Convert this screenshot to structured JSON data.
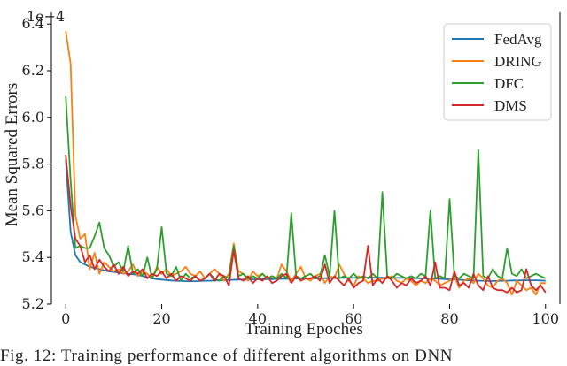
{
  "chart_data": {
    "type": "line",
    "xlabel": "Training Epoches",
    "ylabel": "Mean Squared Errors",
    "y_multiplier_label": "1e−4",
    "xlim": [
      -3,
      103
    ],
    "ylim": [
      5.2,
      6.45
    ],
    "xticks": [
      0,
      20,
      40,
      60,
      80,
      100
    ],
    "yticks": [
      5.2,
      5.4,
      5.6,
      5.8,
      6.0,
      6.2,
      6.4
    ],
    "legend_position": "top-right",
    "grid": false,
    "series": [
      {
        "name": "FedAvg",
        "color": "#1f77b4",
        "x": [
          0,
          1,
          2,
          3,
          4,
          5,
          6,
          7,
          8,
          9,
          10,
          11,
          12,
          13,
          14,
          15,
          16,
          17,
          18,
          19,
          20,
          21,
          22,
          23,
          24,
          25,
          26,
          27,
          28,
          29,
          30,
          31,
          32,
          33,
          34,
          35,
          36,
          37,
          38,
          39,
          40,
          41,
          42,
          43,
          44,
          45,
          46,
          47,
          48,
          49,
          50,
          51,
          52,
          53,
          54,
          55,
          56,
          57,
          58,
          59,
          60,
          61,
          62,
          63,
          64,
          65,
          66,
          67,
          68,
          69,
          70,
          71,
          72,
          73,
          74,
          75,
          76,
          77,
          78,
          79,
          80,
          81,
          82,
          83,
          84,
          85,
          86,
          87,
          88,
          89,
          90,
          91,
          92,
          93,
          94,
          95,
          96,
          97,
          98,
          99,
          100
        ],
        "y": [
          5.82,
          5.51,
          5.41,
          5.38,
          5.37,
          5.36,
          5.355,
          5.35,
          5.345,
          5.34,
          5.338,
          5.335,
          5.332,
          5.33,
          5.328,
          5.325,
          5.32,
          5.315,
          5.31,
          5.307,
          5.305,
          5.303,
          5.301,
          5.3,
          5.299,
          5.298,
          5.298,
          5.298,
          5.299,
          5.3,
          5.3,
          5.301,
          5.302,
          5.303,
          5.303,
          5.304,
          5.305,
          5.305,
          5.305,
          5.306,
          5.306,
          5.307,
          5.307,
          5.307,
          5.308,
          5.308,
          5.308,
          5.309,
          5.309,
          5.309,
          5.31,
          5.31,
          5.31,
          5.31,
          5.311,
          5.311,
          5.311,
          5.312,
          5.312,
          5.312,
          5.312,
          5.313,
          5.313,
          5.313,
          5.313,
          5.313,
          5.313,
          5.312,
          5.312,
          5.312,
          5.312,
          5.312,
          5.311,
          5.311,
          5.31,
          5.31,
          5.309,
          5.309,
          5.308,
          5.307,
          5.306,
          5.305,
          5.304,
          5.303,
          5.302,
          5.301,
          5.3,
          5.3,
          5.299,
          5.299,
          5.299,
          5.3,
          5.3,
          5.301,
          5.301,
          5.302,
          5.302,
          5.302,
          5.302,
          5.301,
          5.3
        ]
      },
      {
        "name": "DRING",
        "color": "#ff7f0e",
        "x": [
          0,
          1,
          2,
          3,
          4,
          5,
          6,
          7,
          8,
          9,
          10,
          11,
          12,
          13,
          14,
          15,
          16,
          17,
          18,
          19,
          20,
          21,
          22,
          23,
          24,
          25,
          26,
          27,
          28,
          29,
          30,
          31,
          32,
          33,
          34,
          35,
          36,
          37,
          38,
          39,
          40,
          41,
          42,
          43,
          44,
          45,
          46,
          47,
          48,
          49,
          50,
          51,
          52,
          53,
          54,
          55,
          56,
          57,
          58,
          59,
          60,
          61,
          62,
          63,
          64,
          65,
          66,
          67,
          68,
          69,
          70,
          71,
          72,
          73,
          74,
          75,
          76,
          77,
          78,
          79,
          80,
          81,
          82,
          83,
          84,
          85,
          86,
          87,
          88,
          89,
          90,
          91,
          92,
          93,
          94,
          95,
          96,
          97,
          98,
          99,
          100
        ],
        "y": [
          6.37,
          6.23,
          5.58,
          5.48,
          5.5,
          5.35,
          5.42,
          5.33,
          5.38,
          5.36,
          5.34,
          5.35,
          5.33,
          5.34,
          5.37,
          5.32,
          5.34,
          5.33,
          5.31,
          5.36,
          5.33,
          5.35,
          5.32,
          5.33,
          5.34,
          5.36,
          5.33,
          5.32,
          5.34,
          5.31,
          5.33,
          5.35,
          5.33,
          5.3,
          5.33,
          5.46,
          5.34,
          5.33,
          5.3,
          5.34,
          5.32,
          5.33,
          5.31,
          5.32,
          5.31,
          5.37,
          5.34,
          5.3,
          5.33,
          5.36,
          5.31,
          5.3,
          5.32,
          5.33,
          5.29,
          5.32,
          5.31,
          5.37,
          5.33,
          5.3,
          5.28,
          5.32,
          5.31,
          5.29,
          5.3,
          5.3,
          5.31,
          5.31,
          5.32,
          5.3,
          5.29,
          5.31,
          5.3,
          5.28,
          5.3,
          5.29,
          5.31,
          5.3,
          5.28,
          5.29,
          5.3,
          5.32,
          5.27,
          5.3,
          5.31,
          5.29,
          5.33,
          5.31,
          5.28,
          5.27,
          5.3,
          5.31,
          5.29,
          5.24,
          5.3,
          5.28,
          5.26,
          5.27,
          5.24,
          5.29,
          5.29
        ]
      },
      {
        "name": "DFC",
        "color": "#2ca02c",
        "x": [
          0,
          1,
          2,
          3,
          4,
          5,
          6,
          7,
          8,
          9,
          10,
          11,
          12,
          13,
          14,
          15,
          16,
          17,
          18,
          19,
          20,
          21,
          22,
          23,
          24,
          25,
          26,
          27,
          28,
          29,
          30,
          31,
          32,
          33,
          34,
          35,
          36,
          37,
          38,
          39,
          40,
          41,
          42,
          43,
          44,
          45,
          46,
          47,
          48,
          49,
          50,
          51,
          52,
          53,
          54,
          55,
          56,
          57,
          58,
          59,
          60,
          61,
          62,
          63,
          64,
          65,
          66,
          67,
          68,
          69,
          70,
          71,
          72,
          73,
          74,
          75,
          76,
          77,
          78,
          79,
          80,
          81,
          82,
          83,
          84,
          85,
          86,
          87,
          88,
          89,
          90,
          91,
          92,
          93,
          94,
          95,
          96,
          97,
          98,
          99,
          100
        ],
        "y": [
          6.09,
          5.73,
          5.44,
          5.45,
          5.44,
          5.44,
          5.49,
          5.55,
          5.44,
          5.41,
          5.36,
          5.38,
          5.34,
          5.45,
          5.33,
          5.35,
          5.32,
          5.4,
          5.31,
          5.35,
          5.53,
          5.33,
          5.32,
          5.36,
          5.3,
          5.33,
          5.31,
          5.32,
          5.3,
          5.31,
          5.33,
          5.31,
          5.3,
          5.32,
          5.31,
          5.45,
          5.32,
          5.33,
          5.31,
          5.32,
          5.31,
          5.33,
          5.31,
          5.32,
          5.31,
          5.33,
          5.31,
          5.59,
          5.32,
          5.31,
          5.32,
          5.33,
          5.31,
          5.32,
          5.41,
          5.32,
          5.6,
          5.31,
          5.32,
          5.31,
          5.33,
          5.31,
          5.32,
          5.31,
          5.33,
          5.31,
          5.68,
          5.32,
          5.31,
          5.33,
          5.32,
          5.31,
          5.32,
          5.31,
          5.33,
          5.32,
          5.6,
          5.31,
          5.32,
          5.31,
          5.65,
          5.32,
          5.31,
          5.33,
          5.32,
          5.31,
          5.86,
          5.32,
          5.31,
          5.35,
          5.32,
          5.31,
          5.44,
          5.33,
          5.32,
          5.35,
          5.31,
          5.32,
          5.33,
          5.32,
          5.31
        ]
      },
      {
        "name": "DMS",
        "color": "#d62728",
        "x": [
          0,
          1,
          2,
          3,
          4,
          5,
          6,
          7,
          8,
          9,
          10,
          11,
          12,
          13,
          14,
          15,
          16,
          17,
          18,
          19,
          20,
          21,
          22,
          23,
          24,
          25,
          26,
          27,
          28,
          29,
          30,
          31,
          32,
          33,
          34,
          35,
          36,
          37,
          38,
          39,
          40,
          41,
          42,
          43,
          44,
          45,
          46,
          47,
          48,
          49,
          50,
          51,
          52,
          53,
          54,
          55,
          56,
          57,
          58,
          59,
          60,
          61,
          62,
          63,
          64,
          65,
          66,
          67,
          68,
          69,
          70,
          71,
          72,
          73,
          74,
          75,
          76,
          77,
          78,
          79,
          80,
          81,
          82,
          83,
          84,
          85,
          86,
          87,
          88,
          89,
          90,
          91,
          92,
          93,
          94,
          95,
          96,
          97,
          98,
          99,
          100
        ],
        "y": [
          5.84,
          5.62,
          5.48,
          5.45,
          5.38,
          5.41,
          5.35,
          5.39,
          5.36,
          5.34,
          5.37,
          5.33,
          5.36,
          5.32,
          5.34,
          5.33,
          5.35,
          5.31,
          5.33,
          5.32,
          5.34,
          5.31,
          5.33,
          5.3,
          5.32,
          5.31,
          5.3,
          5.32,
          5.3,
          5.31,
          5.33,
          5.3,
          5.33,
          5.32,
          5.28,
          5.43,
          5.31,
          5.3,
          5.32,
          5.29,
          5.31,
          5.3,
          5.32,
          5.29,
          5.3,
          5.32,
          5.33,
          5.29,
          5.32,
          5.3,
          5.31,
          5.31,
          5.32,
          5.3,
          5.37,
          5.29,
          5.32,
          5.3,
          5.28,
          5.31,
          5.27,
          5.29,
          5.3,
          5.45,
          5.28,
          5.31,
          5.29,
          5.32,
          5.3,
          5.27,
          5.29,
          5.28,
          5.31,
          5.29,
          5.3,
          5.32,
          5.28,
          5.38,
          5.27,
          5.27,
          5.26,
          5.34,
          5.28,
          5.29,
          5.27,
          5.33,
          5.28,
          5.26,
          5.32,
          5.27,
          5.26,
          5.26,
          5.25,
          5.27,
          5.25,
          5.26,
          5.35,
          5.28,
          5.26,
          5.28,
          5.25
        ]
      }
    ]
  },
  "caption": "Fig. 12: Training performance of different algorithms on DNN"
}
